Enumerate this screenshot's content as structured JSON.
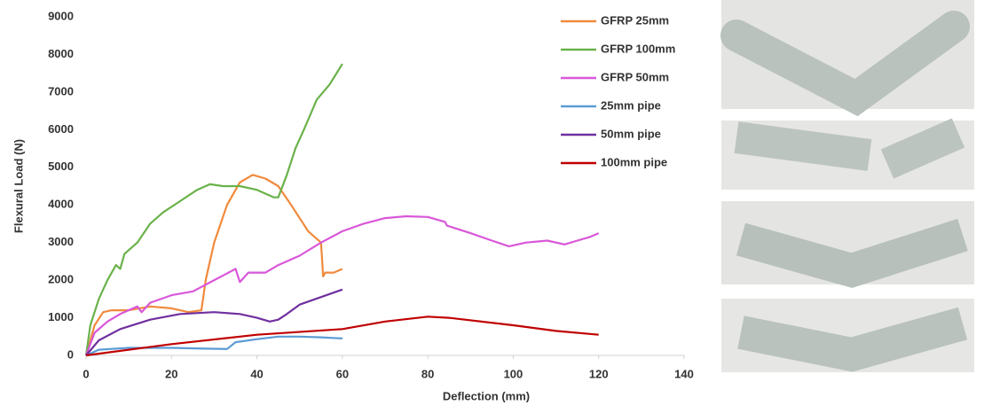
{
  "chart_data": {
    "type": "line",
    "x_label": "Deflection (mm)",
    "y_label": "Flexural Load (N)",
    "xlim": [
      0,
      140
    ],
    "xticks": [
      0,
      20,
      40,
      60,
      80,
      100,
      120,
      140
    ],
    "ylim": [
      0,
      9000
    ],
    "yticks": [
      0,
      1000,
      2000,
      3000,
      4000,
      5000,
      6000,
      7000,
      8000,
      9000
    ],
    "grid": false,
    "legend": "top-right",
    "series": [
      {
        "name": "GFRP 25mm",
        "color": "#f08a3c",
        "x": [
          0,
          2,
          4,
          6,
          10,
          15,
          20,
          24,
          27,
          28,
          30,
          33,
          36,
          39,
          42,
          45,
          48,
          52,
          55,
          55.5,
          56,
          58,
          60
        ],
        "values": [
          0,
          800,
          1150,
          1200,
          1200,
          1300,
          1250,
          1150,
          1200,
          2000,
          3000,
          4000,
          4600,
          4800,
          4700,
          4500,
          4000,
          3300,
          3000,
          2100,
          2200,
          2200,
          2300
        ]
      },
      {
        "name": "GFRP 100mm",
        "color": "#6ab24a",
        "x": [
          0,
          1,
          3,
          5,
          7,
          8,
          9,
          12,
          15,
          18,
          22,
          26,
          29,
          32,
          36,
          40,
          44,
          45,
          47,
          49,
          51,
          54,
          57,
          60
        ],
        "values": [
          0,
          800,
          1500,
          2000,
          2400,
          2300,
          2700,
          3000,
          3500,
          3800,
          4100,
          4400,
          4550,
          4500,
          4500,
          4400,
          4200,
          4200,
          4800,
          5500,
          6000,
          6800,
          7200,
          7750
        ]
      },
      {
        "name": "GFRP 50mm",
        "color": "#d957d9",
        "x": [
          0,
          2,
          5,
          8,
          12,
          13,
          15,
          20,
          25,
          30,
          35,
          36,
          38,
          42,
          45,
          50,
          55,
          60,
          65,
          70,
          75,
          80,
          84,
          84.5,
          90,
          95,
          99,
          103,
          108,
          112,
          115,
          118,
          120
        ],
        "values": [
          0,
          600,
          900,
          1100,
          1300,
          1150,
          1400,
          1600,
          1700,
          2000,
          2300,
          1950,
          2200,
          2200,
          2400,
          2650,
          3000,
          3300,
          3500,
          3650,
          3700,
          3680,
          3550,
          3450,
          3250,
          3050,
          2900,
          3000,
          3050,
          2950,
          3050,
          3150,
          3250
        ]
      },
      {
        "name": "25mm pipe",
        "color": "#5b9bd5",
        "x": [
          0,
          3,
          10,
          20,
          28,
          33,
          35,
          40,
          45,
          50,
          55,
          60
        ],
        "values": [
          0,
          150,
          200,
          200,
          180,
          170,
          350,
          430,
          500,
          500,
          480,
          450
        ]
      },
      {
        "name": "50mm pipe",
        "color": "#7030a0",
        "x": [
          0,
          3,
          8,
          15,
          22,
          30,
          36,
          40,
          43,
          45,
          47,
          50,
          55,
          60
        ],
        "values": [
          0,
          400,
          700,
          950,
          1100,
          1150,
          1100,
          1000,
          900,
          950,
          1100,
          1350,
          1550,
          1750
        ]
      },
      {
        "name": "100mm pipe",
        "color": "#c00000",
        "x": [
          0,
          20,
          40,
          60,
          70,
          80,
          85,
          100,
          110,
          120
        ],
        "values": [
          0,
          300,
          550,
          700,
          900,
          1030,
          1000,
          800,
          650,
          550
        ]
      }
    ]
  }
}
